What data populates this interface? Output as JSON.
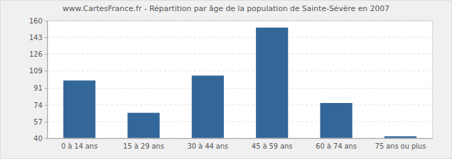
{
  "chart_data": {
    "type": "bar",
    "title": "www.CartesFrance.fr - Répartition par âge de la population de Sainte-Sévère en 2007",
    "categories": [
      "0 à 14 ans",
      "15 à 29 ans",
      "30 à 44 ans",
      "45 à 59 ans",
      "60 à 74 ans",
      "75 ans ou plus"
    ],
    "values": [
      99,
      66,
      104,
      153,
      76,
      42
    ],
    "color": "#336699",
    "ylim": [
      40,
      160
    ],
    "yticks": [
      40,
      57,
      74,
      91,
      109,
      126,
      143,
      160
    ],
    "grid": true
  }
}
